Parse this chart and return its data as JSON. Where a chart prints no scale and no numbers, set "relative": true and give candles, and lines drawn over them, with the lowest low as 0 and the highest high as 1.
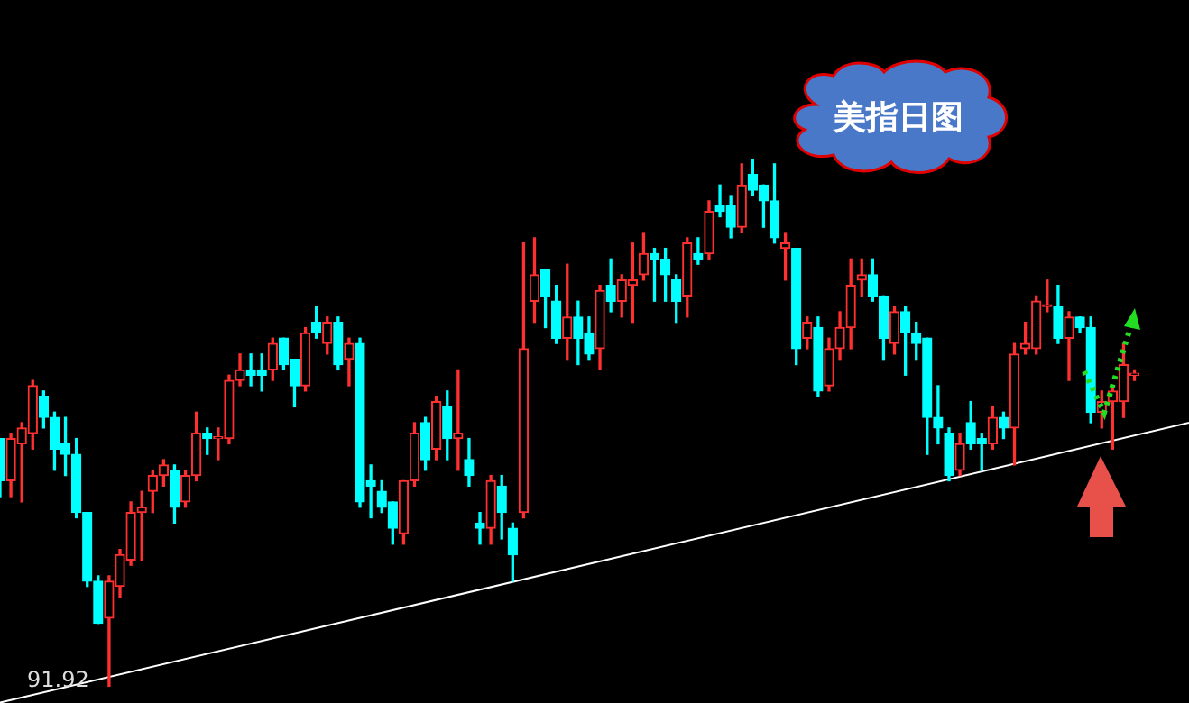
{
  "chart_data": {
    "type": "candlestick",
    "title": "美指日图",
    "relative": true,
    "categories": [
      null,
      null,
      null,
      null,
      null,
      null,
      null,
      null,
      null,
      null,
      null,
      null,
      null,
      null,
      null,
      null,
      null,
      null,
      null,
      null,
      null,
      null,
      null,
      null,
      null,
      null,
      null,
      null,
      null,
      null,
      null,
      null,
      null,
      null,
      null,
      null,
      null,
      null,
      null,
      null,
      null,
      null,
      null,
      null,
      null,
      null,
      null,
      null,
      null,
      null,
      null,
      null,
      null,
      null,
      null,
      null,
      null,
      null,
      null,
      null,
      null,
      null,
      null,
      null,
      null,
      null,
      null,
      null,
      null,
      null,
      null,
      null,
      null,
      null,
      null,
      null,
      null,
      null,
      null,
      null,
      null,
      null,
      null,
      null,
      null,
      null,
      null,
      null,
      null,
      null,
      null,
      null,
      null,
      null,
      null,
      null,
      null,
      null,
      null,
      null,
      null,
      null,
      null,
      null,
      null,
      null,
      null,
      null,
      null,
      null
    ],
    "ohlc": [
      [
        0.47,
        0.47,
        0.36,
        0.39
      ],
      [
        0.39,
        0.48,
        0.36,
        0.47
      ],
      [
        0.46,
        0.5,
        0.35,
        0.49
      ],
      [
        0.48,
        0.58,
        0.45,
        0.57
      ],
      [
        0.55,
        0.56,
        0.49,
        0.51
      ],
      [
        0.51,
        0.52,
        0.41,
        0.45
      ],
      [
        0.46,
        0.51,
        0.4,
        0.44
      ],
      [
        0.44,
        0.47,
        0.32,
        0.33
      ],
      [
        0.33,
        0.33,
        0.19,
        0.2
      ],
      [
        0.2,
        0.21,
        0.12,
        0.12
      ],
      [
        0.13,
        0.21,
        0,
        0.2
      ],
      [
        0.19,
        0.26,
        0.17,
        0.25
      ],
      [
        0.24,
        0.35,
        0.23,
        0.33
      ],
      [
        0.33,
        0.37,
        0.24,
        0.34
      ],
      [
        0.37,
        0.41,
        0.33,
        0.4
      ],
      [
        0.4,
        0.43,
        0.38,
        0.42
      ],
      [
        0.41,
        0.42,
        0.31,
        0.34
      ],
      [
        0.35,
        0.41,
        0.34,
        0.4
      ],
      [
        0.4,
        0.52,
        0.39,
        0.48
      ],
      [
        0.48,
        0.49,
        0.44,
        0.47
      ],
      [
        0.47,
        0.49,
        0.43,
        0.47
      ],
      [
        0.47,
        0.59,
        0.46,
        0.58
      ],
      [
        0.58,
        0.63,
        0.57,
        0.6
      ],
      [
        0.6,
        0.63,
        0.57,
        0.59
      ],
      [
        0.6,
        0.63,
        0.56,
        0.59
      ],
      [
        0.6,
        0.66,
        0.58,
        0.65
      ],
      [
        0.66,
        0.66,
        0.6,
        0.61
      ],
      [
        0.62,
        0.62,
        0.53,
        0.57
      ],
      [
        0.57,
        0.68,
        0.56,
        0.67
      ],
      [
        0.69,
        0.72,
        0.66,
        0.67
      ],
      [
        0.65,
        0.7,
        0.63,
        0.69
      ],
      [
        0.69,
        0.7,
        0.6,
        0.61
      ],
      [
        0.62,
        0.66,
        0.57,
        0.65
      ],
      [
        0.65,
        0.66,
        0.34,
        0.35
      ],
      [
        0.39,
        0.42,
        0.32,
        0.38
      ],
      [
        0.37,
        0.39,
        0.33,
        0.34
      ],
      [
        0.35,
        0.35,
        0.27,
        0.3
      ],
      [
        0.29,
        0.39,
        0.27,
        0.39
      ],
      [
        0.39,
        0.5,
        0.38,
        0.48
      ],
      [
        0.5,
        0.51,
        0.41,
        0.43
      ],
      [
        0.45,
        0.55,
        0.43,
        0.54
      ],
      [
        0.53,
        0.56,
        0.43,
        0.47
      ],
      [
        0.47,
        0.6,
        0.41,
        0.48
      ],
      [
        0.43,
        0.47,
        0.38,
        0.4
      ],
      [
        0.31,
        0.33,
        0.27,
        0.3
      ],
      [
        0.3,
        0.4,
        0.27,
        0.39
      ],
      [
        0.38,
        0.4,
        0.28,
        0.33
      ],
      [
        0.3,
        0.31,
        0.2,
        0.25
      ],
      [
        0.33,
        0.84,
        0.32,
        0.64
      ],
      [
        0.73,
        0.85,
        0.69,
        0.78
      ],
      [
        0.79,
        0.79,
        0.68,
        0.74
      ],
      [
        0.73,
        0.76,
        0.65,
        0.66
      ],
      [
        0.66,
        0.8,
        0.62,
        0.7
      ],
      [
        0.7,
        0.73,
        0.61,
        0.66
      ],
      [
        0.67,
        0.7,
        0.62,
        0.63
      ],
      [
        0.64,
        0.76,
        0.6,
        0.75
      ],
      [
        0.76,
        0.81,
        0.71,
        0.73
      ],
      [
        0.73,
        0.78,
        0.7,
        0.77
      ],
      [
        0.76,
        0.84,
        0.69,
        0.77
      ],
      [
        0.78,
        0.86,
        0.77,
        0.82
      ],
      [
        0.82,
        0.83,
        0.73,
        0.81
      ],
      [
        0.81,
        0.83,
        0.73,
        0.78
      ],
      [
        0.77,
        0.78,
        0.69,
        0.73
      ],
      [
        0.74,
        0.85,
        0.7,
        0.84
      ],
      [
        0.82,
        0.85,
        0.8,
        0.81
      ],
      [
        0.82,
        0.92,
        0.81,
        0.9
      ],
      [
        0.91,
        0.95,
        0.89,
        0.9
      ],
      [
        0.91,
        0.93,
        0.85,
        0.87
      ],
      [
        0.87,
        0.99,
        0.86,
        0.95
      ],
      [
        0.97,
        1,
        0.93,
        0.94
      ],
      [
        0.95,
        0.95,
        0.87,
        0.92
      ],
      [
        0.92,
        0.99,
        0.84,
        0.85
      ],
      [
        0.83,
        0.86,
        0.77,
        0.84
      ],
      [
        0.83,
        0.83,
        0.61,
        0.64
      ],
      [
        0.66,
        0.7,
        0.64,
        0.69
      ],
      [
        0.68,
        0.7,
        0.55,
        0.56
      ],
      [
        0.57,
        0.66,
        0.56,
        0.64
      ],
      [
        0.64,
        0.71,
        0.62,
        0.68
      ],
      [
        0.68,
        0.81,
        0.64,
        0.76
      ],
      [
        0.77,
        0.81,
        0.74,
        0.78
      ],
      [
        0.78,
        0.81,
        0.73,
        0.74
      ],
      [
        0.74,
        0.74,
        0.62,
        0.66
      ],
      [
        0.65,
        0.72,
        0.63,
        0.71
      ],
      [
        0.71,
        0.72,
        0.59,
        0.67
      ],
      [
        0.67,
        0.69,
        0.62,
        0.65
      ],
      [
        0.66,
        0.66,
        0.44,
        0.51
      ],
      [
        0.51,
        0.57,
        0.46,
        0.49
      ],
      [
        0.48,
        0.49,
        0.39,
        0.4
      ],
      [
        0.41,
        0.48,
        0.4,
        0.46
      ],
      [
        0.5,
        0.54,
        0.45,
        0.46
      ],
      [
        0.47,
        0.48,
        0.41,
        0.46
      ],
      [
        0.46,
        0.53,
        0.45,
        0.51
      ],
      [
        0.51,
        0.52,
        0.47,
        0.49
      ],
      [
        0.49,
        0.65,
        0.42,
        0.63
      ],
      [
        0.64,
        0.69,
        0.63,
        0.65
      ],
      [
        0.64,
        0.74,
        0.63,
        0.73
      ],
      [
        0.72,
        0.77,
        0.71,
        0.72
      ],
      [
        0.72,
        0.76,
        0.65,
        0.66
      ],
      [
        0.66,
        0.71,
        0.58,
        0.7
      ],
      [
        0.7,
        0.7,
        0.67,
        0.68
      ],
      [
        0.68,
        0.7,
        0.5,
        0.52
      ],
      [
        0.52,
        0.56,
        0.49,
        0.54
      ],
      [
        0.54,
        0.57,
        0.45,
        0.56
      ],
      [
        0.54,
        0.65,
        0.51,
        0.61
      ],
      [
        0.59,
        0.6,
        0.58,
        0.59
      ],
      null,
      null,
      null,
      null,
      null
    ],
    "series": [
      {
        "type": "line",
        "color": "#ffffff",
        "values": [
          -0.03,
          null,
          null,
          null,
          null,
          null,
          null,
          null,
          null,
          null,
          null,
          null,
          null,
          null,
          null,
          null,
          null,
          null,
          null,
          null,
          null,
          null,
          null,
          null,
          null,
          null,
          null,
          null,
          null,
          null,
          null,
          null,
          null,
          null,
          null,
          null,
          null,
          null,
          null,
          null,
          null,
          null,
          null,
          null,
          null,
          null,
          null,
          null,
          null,
          null,
          null,
          null,
          null,
          null,
          null,
          null,
          null,
          null,
          null,
          null,
          null,
          null,
          null,
          null,
          null,
          null,
          null,
          null,
          null,
          null,
          null,
          null,
          null,
          null,
          null,
          null,
          null,
          null,
          null,
          null,
          null,
          null,
          null,
          null,
          null,
          null,
          null,
          null,
          null,
          null,
          null,
          null,
          null,
          null,
          null,
          null,
          null,
          null,
          null,
          null,
          null,
          null,
          null,
          null,
          null,
          null,
          null,
          null,
          null,
          0.5
        ]
      }
    ],
    "annotations": [
      {
        "text": "91.92",
        "y": 0
      }
    ]
  }
}
